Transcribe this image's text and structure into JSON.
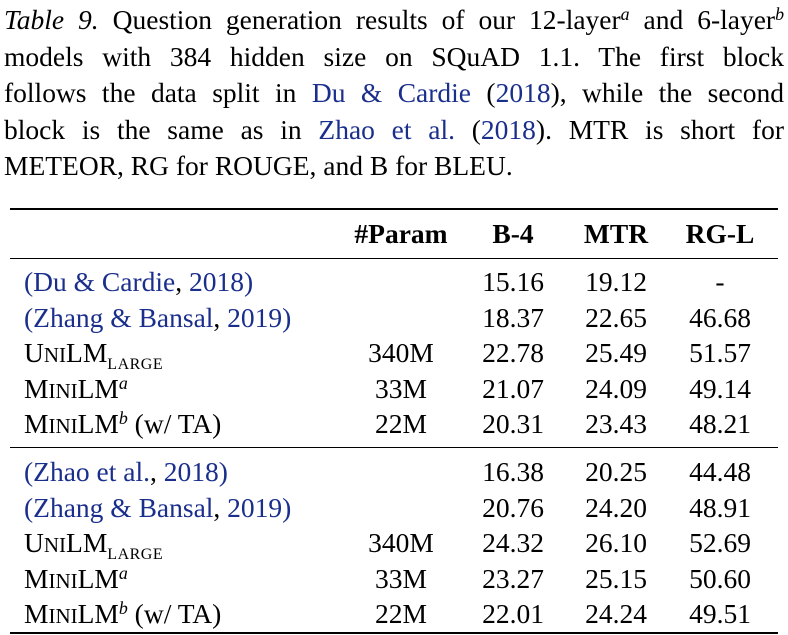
{
  "caption": {
    "label": "Table 9.",
    "lines": [
      {
        "before": "Question generation results of our 12-layer",
        "sup1": "a",
        "mid": " and 6-layer",
        "sup2": "b"
      },
      {
        "text": "models with 384 hidden size on SQuAD 1.1.  The first block"
      },
      {
        "pre": "follows the data split in ",
        "cite_a": "Du & Cardie",
        "mid": " (",
        "cite_b": "2018",
        "post": "), while the second"
      },
      {
        "pre": "block is the same as in ",
        "cite_a": "Zhao et al.",
        "mid": " (",
        "cite_b": "2018",
        "post": ").  MTR is short for"
      },
      {
        "text": "METEOR, RG for ROUGE, and B for BLEU."
      }
    ]
  },
  "table": {
    "headers": [
      "#Param",
      "B-4",
      "MTR",
      "RG-L"
    ],
    "blocks": [
      {
        "rows": [
          {
            "model": {
              "type": "cite",
              "open": "(",
              "name": "Du & Cardie",
              "sep": ", ",
              "year": "2018",
              "close": ")"
            },
            "param": "",
            "b4": "15.16",
            "mtr": "19.12",
            "rgl": "-"
          },
          {
            "model": {
              "type": "cite",
              "open": "(",
              "name": "Zhang & Bansal",
              "sep": ", ",
              "year": "2019",
              "close": ")"
            },
            "param": "",
            "b4": "18.37",
            "mtr": "22.65",
            "rgl": "46.68"
          },
          {
            "model": {
              "type": "unilm",
              "u": "U",
              "ni": "NI",
              "lm": "LM",
              "sub": "LARGE"
            },
            "param": "340M",
            "b4": "22.78",
            "mtr": "25.49",
            "rgl": "51.57"
          },
          {
            "model": {
              "type": "minilm",
              "m": "M",
              "ini": "INI",
              "lm": "LM",
              "sup": "a",
              "suffix": ""
            },
            "param": "33M",
            "b4": "21.07",
            "mtr": "24.09",
            "rgl": "49.14"
          },
          {
            "model": {
              "type": "minilm",
              "m": "M",
              "ini": "INI",
              "lm": "LM",
              "sup": "b",
              "suffix": " (w/ TA)"
            },
            "param": "22M",
            "b4": "20.31",
            "mtr": "23.43",
            "rgl": "48.21"
          }
        ]
      },
      {
        "rows": [
          {
            "model": {
              "type": "cite",
              "open": "(",
              "name": "Zhao et al.",
              "sep": ", ",
              "year": "2018",
              "close": ")"
            },
            "param": "",
            "b4": "16.38",
            "mtr": "20.25",
            "rgl": "44.48"
          },
          {
            "model": {
              "type": "cite",
              "open": "(",
              "name": "Zhang & Bansal",
              "sep": ", ",
              "year": "2019",
              "close": ")"
            },
            "param": "",
            "b4": "20.76",
            "mtr": "24.20",
            "rgl": "48.91"
          },
          {
            "model": {
              "type": "unilm",
              "u": "U",
              "ni": "NI",
              "lm": "LM",
              "sub": "LARGE"
            },
            "param": "340M",
            "b4": "24.32",
            "mtr": "26.10",
            "rgl": "52.69"
          },
          {
            "model": {
              "type": "minilm",
              "m": "M",
              "ini": "INI",
              "lm": "LM",
              "sup": "a",
              "suffix": ""
            },
            "param": "33M",
            "b4": "23.27",
            "mtr": "25.15",
            "rgl": "50.60"
          },
          {
            "model": {
              "type": "minilm",
              "m": "M",
              "ini": "INI",
              "lm": "LM",
              "sup": "b",
              "suffix": " (w/ TA)"
            },
            "param": "22M",
            "b4": "22.01",
            "mtr": "24.24",
            "rgl": "49.51"
          }
        ]
      }
    ]
  }
}
